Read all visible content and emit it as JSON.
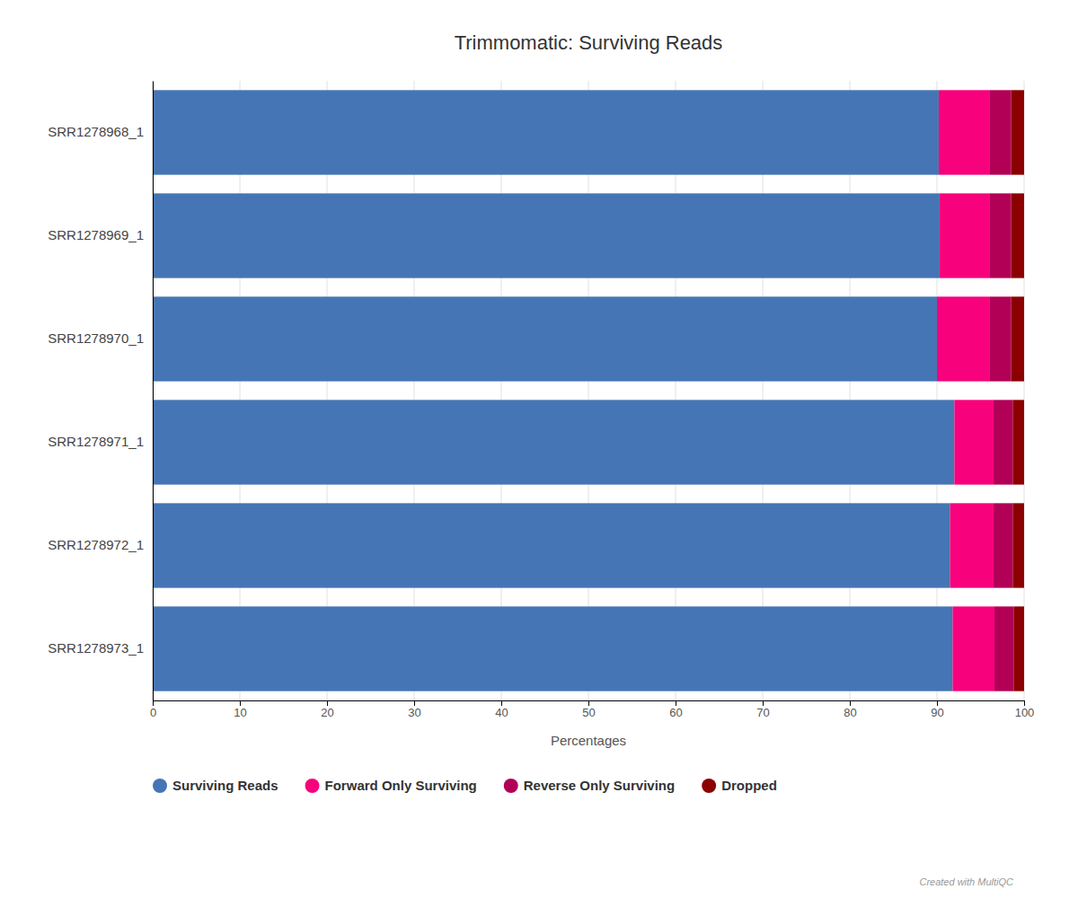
{
  "chart_data": {
    "type": "bar",
    "orientation": "horizontal",
    "stacked": true,
    "title": "Trimmomatic: Surviving Reads",
    "xlabel": "Percentages",
    "categories": [
      "SRR1278968_1",
      "SRR1278969_1",
      "SRR1278970_1",
      "SRR1278971_1",
      "SRR1278972_1",
      "SRR1278973_1"
    ],
    "series": [
      {
        "name": "Surviving Reads",
        "color": "#4575b4",
        "values": [
          90.2,
          90.3,
          90.0,
          92.0,
          91.5,
          91.8
        ]
      },
      {
        "name": "Forward Only Surviving",
        "color": "#f7027c",
        "values": [
          5.8,
          5.7,
          6.0,
          4.5,
          5.0,
          4.8
        ]
      },
      {
        "name": "Reverse Only Surviving",
        "color": "#b20057",
        "values": [
          2.5,
          2.5,
          2.5,
          2.2,
          2.2,
          2.2
        ]
      },
      {
        "name": "Dropped",
        "color": "#8b0000",
        "values": [
          1.5,
          1.5,
          1.5,
          1.3,
          1.3,
          1.2
        ]
      }
    ],
    "xlim": [
      0,
      100
    ],
    "xticks": [
      0,
      10,
      20,
      30,
      40,
      50,
      60,
      70,
      80,
      90,
      100
    ],
    "grid": true,
    "legend": "bottom",
    "annotations": [
      {
        "text": "Created with MultiQC"
      }
    ]
  }
}
